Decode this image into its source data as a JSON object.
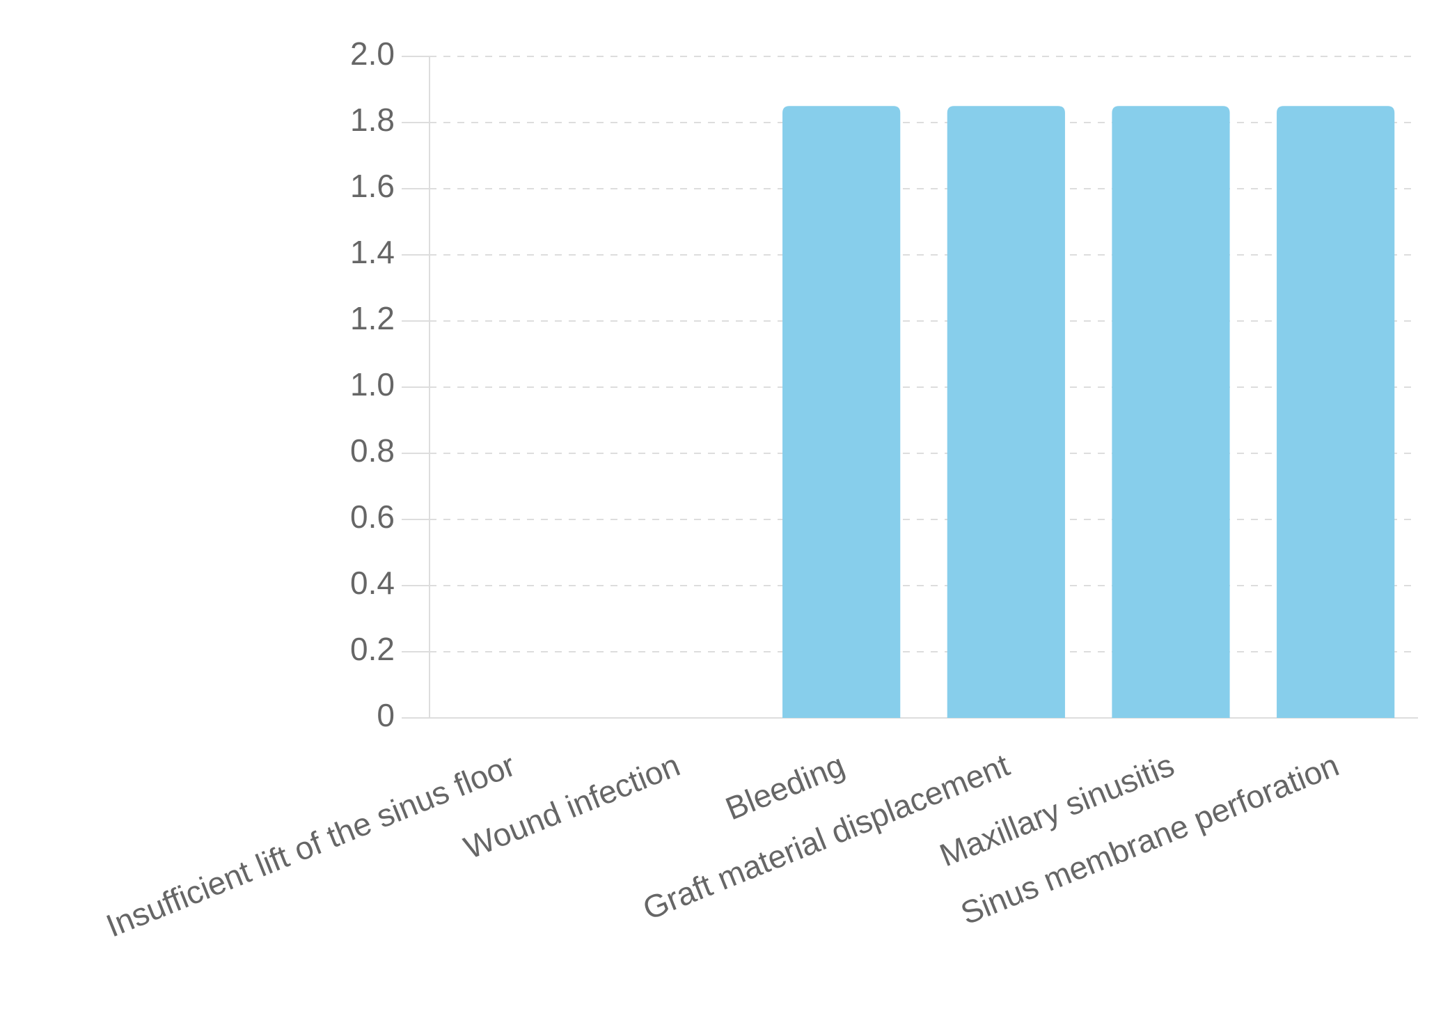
{
  "chart_data": {
    "type": "bar",
    "categories": [
      "Insufficient lift of the sinus floor",
      "Wound infection",
      "Bleeding",
      "Graft material displacement",
      "Maxillary sinusitis",
      "Sinus membrane perforation"
    ],
    "values": [
      0,
      0,
      1.85,
      1.85,
      1.85,
      1.85
    ],
    "color": "#87ceeb",
    "ylim": [
      0,
      2.0
    ],
    "yticks": [
      0,
      0.2,
      0.4,
      0.6,
      0.8,
      {
        "value": 1.0,
        "label": "1.0"
      },
      1.2,
      1.4,
      1.6,
      1.8,
      {
        "value": 2.0,
        "label": "2.0"
      }
    ],
    "grid": true
  }
}
